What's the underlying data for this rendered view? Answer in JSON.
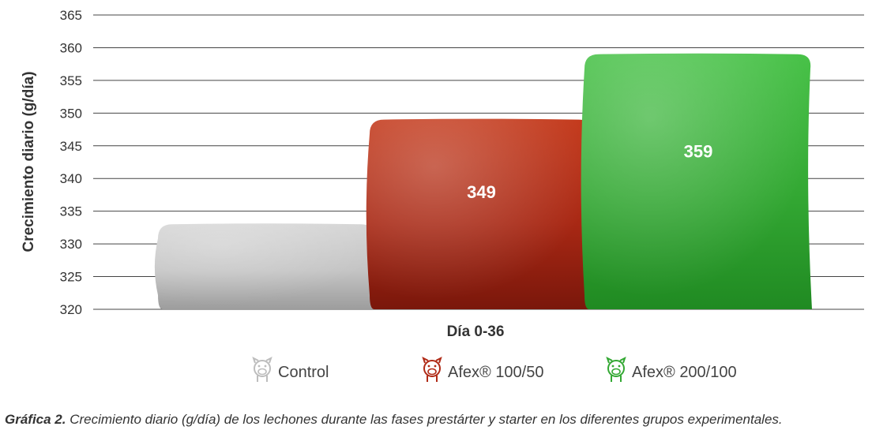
{
  "chart_data": {
    "type": "bar",
    "categories": [
      "Control",
      "Afex® 100/50",
      "Afex® 200/100"
    ],
    "values": [
      333,
      349,
      359
    ],
    "data_labels": [
      "",
      "349",
      "359"
    ],
    "xlabel": "Día 0-36",
    "ylabel": "Crecimiento diario (g/día)",
    "ylim": [
      320,
      365
    ],
    "yticks": [
      320,
      325,
      330,
      335,
      340,
      345,
      350,
      355,
      360,
      365
    ],
    "grid": true,
    "legend_placement": "bottom",
    "colors": [
      "#c9c9c9",
      "#b02a16",
      "#33a833"
    ]
  },
  "legend": {
    "items": [
      {
        "label": "Control",
        "color": "#bdbdbd",
        "icon": "pig-icon"
      },
      {
        "label": "Afex® 100/50",
        "color": "#b02a16",
        "icon": "pig-icon"
      },
      {
        "label": "Afex® 200/100",
        "color": "#33a833",
        "icon": "pig-icon"
      }
    ]
  },
  "caption": {
    "lead": "Gráfica 2.",
    "text": " Crecimiento diario (g/día) de los lechones durante las fases prestárter y starter en los diferentes grupos experimentales."
  }
}
